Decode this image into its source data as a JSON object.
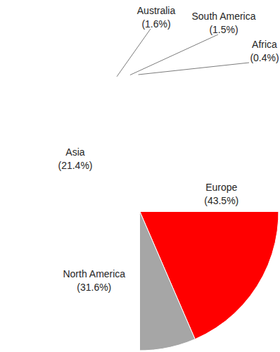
{
  "chart_data": {
    "type": "pie",
    "categories": [
      "Europe",
      "North America",
      "Asia",
      "Australia",
      "South America",
      "Africa"
    ],
    "values": [
      43.5,
      31.6,
      21.4,
      1.6,
      1.5,
      0.4
    ],
    "value_labels": [
      "(43.5%)",
      "(31.6%)",
      "(21.4%)",
      "(1.6%)",
      "(1.5%)",
      "(0.4%)"
    ],
    "colors": [
      "#ff0000",
      "#a6a6a6",
      "#2f77d8",
      "#2fa36b",
      "#c280ef",
      "#ed7d31"
    ],
    "data_labels": true
  }
}
